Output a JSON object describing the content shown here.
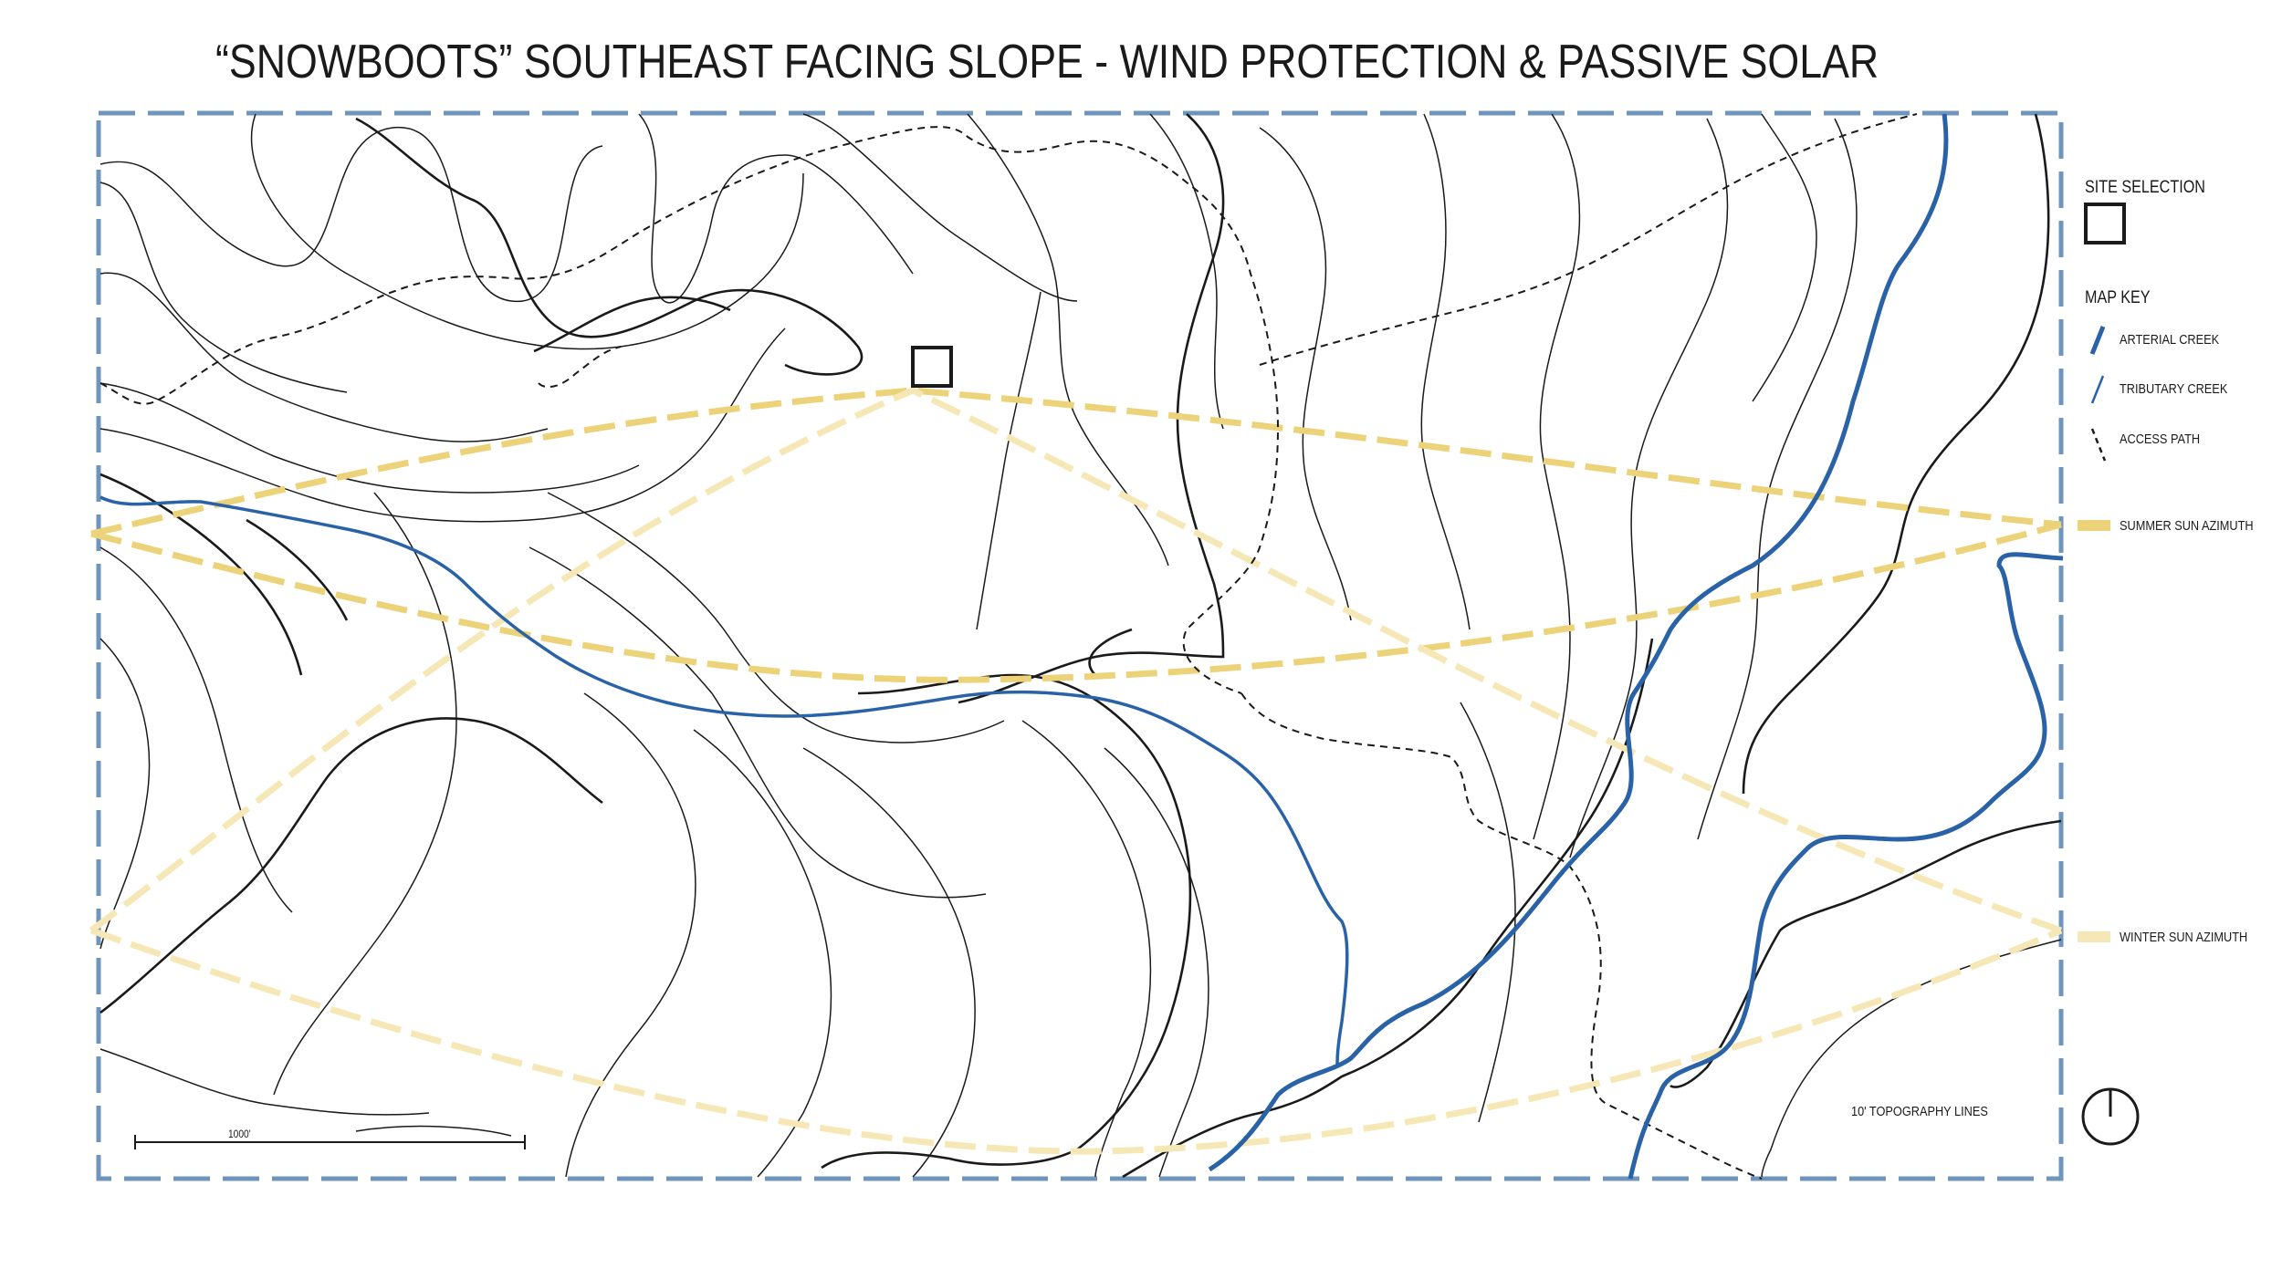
{
  "title": "“SNOWBOOTS” SOUTHEAST FACING SLOPE - WIND PROTECTION & PASSIVE SOLAR",
  "legend": {
    "site_selection": "SITE SELECTION",
    "map_key": "MAP KEY",
    "arterial_creek": "ARTERIAL CREEK",
    "tributary_creek": "TRIBUTARY CREEK",
    "access_path": "ACCESS PATH",
    "summer_sun": "SUMMER SUN AZIMUTH",
    "winter_sun": "WINTER SUN AZIMUTH",
    "topography": "10' TOPOGRAPHY LINES"
  },
  "scale_bar": {
    "label": "1000'"
  },
  "colors": {
    "frame": "#6f95bd",
    "creek": "#2a62a8",
    "summer_sun": "#ecd37a",
    "winter_sun": "#f5e8b6",
    "contour": "#1a1a1a"
  },
  "icons": {
    "site_marker": "square-outline-icon",
    "north_arrow": "north-arrow-icon"
  }
}
